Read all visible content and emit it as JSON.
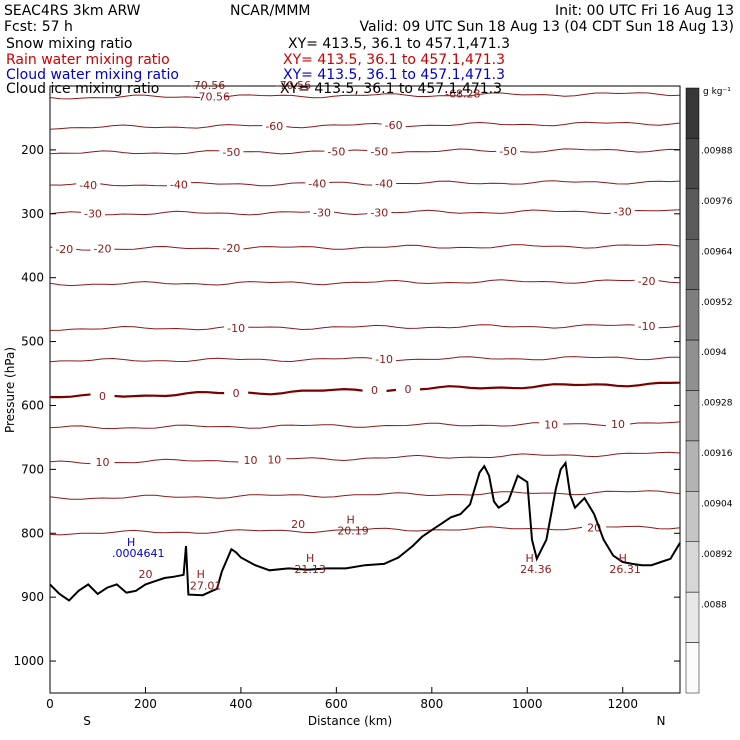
{
  "header": {
    "left1": "SEAC4RS   3km ARW",
    "center1": "NCAR/MMM",
    "right1": "Init: 00 UTC Fri 16 Aug 13",
    "left2": "Fcst:    57 h",
    "center2": "Valid: 09 UTC Sun 18 Aug 13 (04 CDT Sun 18 Aug 13)",
    "fields": [
      {
        "name": "Snow mixing ratio",
        "xy": "XY= 413.5, 36.1 to 457.1,471.3",
        "color": "#000000"
      },
      {
        "name": "Rain water mixing ratio",
        "xy": "XY= 413.5, 36.1 to 457.1,471.3",
        "color": "#cc0000"
      },
      {
        "name": "Cloud water mixing ratio",
        "xy": "XY= 413.5, 36.1 to 457.1,471.3",
        "color": "#0000cc"
      },
      {
        "name": "Cloud ice mixing ratio",
        "xy": "XY= 413.5, 36.1 to 457.1,471.3",
        "color": "#000000"
      }
    ]
  },
  "colors": {
    "contour": "#8b1a1a",
    "zero_contour": "#7a0000",
    "terrain": "#000000",
    "cloud_water": "#0000cc"
  },
  "chart_data": {
    "type": "contour-cross-section",
    "xlabel": "Distance (km)",
    "ylabel": "Pressure (hPa)",
    "xlim": [
      0,
      1320
    ],
    "ylim": [
      1050,
      100
    ],
    "x_ticks": [
      0,
      200,
      400,
      600,
      800,
      1000,
      1200
    ],
    "y_ticks": [
      200,
      300,
      400,
      500,
      600,
      700,
      800,
      900,
      1000
    ],
    "end_labels": {
      "left": "S",
      "right": "N"
    },
    "temperature_contours": [
      {
        "p_left": 118,
        "p_right": 112,
        "label": "-70.56",
        "label_x": 340
      },
      {
        "p_left": 165,
        "p_right": 158,
        "labels": [
          "-60",
          "-60"
        ],
        "label_xs": [
          470,
          720
        ]
      },
      {
        "p_left": 205,
        "p_right": 200,
        "labels": [
          "-50",
          "-50",
          "-50",
          "-50"
        ],
        "label_xs": [
          380,
          600,
          690,
          960
        ]
      },
      {
        "p_left": 255,
        "p_right": 250,
        "labels": [
          "-40",
          "-40",
          "-40",
          "-40"
        ],
        "label_xs": [
          80,
          270,
          560,
          700
        ]
      },
      {
        "p_left": 300,
        "p_right": 296,
        "labels": [
          "-30",
          "-30",
          "-30",
          "-30"
        ],
        "label_xs": [
          90,
          570,
          690,
          1200
        ]
      },
      {
        "p_left": 355,
        "p_right": 350,
        "labels": [
          "-20",
          "-20",
          "-20"
        ],
        "label_xs": [
          30,
          110,
          380
        ]
      },
      {
        "p_left": 410,
        "p_right": 405,
        "label": "-20",
        "label_x": 1250
      },
      {
        "p_left": 480,
        "p_right": 475,
        "labels": [
          "-10",
          "-10"
        ],
        "label_xs": [
          390,
          1250
        ]
      },
      {
        "p_left": 530,
        "p_right": 525,
        "label": "-10",
        "label_x": 700
      },
      {
        "p_left": 587,
        "p_right": 565,
        "labels": [
          "0",
          "0",
          "0",
          "0"
        ],
        "label_xs": [
          110,
          390,
          680,
          750
        ],
        "bold": true
      },
      {
        "p_left": 635,
        "p_right": 628,
        "labels": [
          "10",
          "10"
        ],
        "label_xs": [
          1050,
          1190
        ]
      },
      {
        "p_left": 690,
        "p_right": 675,
        "labels": [
          "10",
          "10",
          "10"
        ],
        "label_xs": [
          110,
          420,
          470
        ]
      },
      {
        "p_left": 745,
        "p_right": 735,
        "label": "",
        "label_x": 0
      },
      {
        "p_left": 800,
        "p_right": 790,
        "label": "20",
        "label_x": 1140
      }
    ],
    "extrema": [
      {
        "text": "H",
        "x": 545,
        "p": 845,
        "color": "#8b1a1a"
      },
      {
        "text": "21.13",
        "x": 545,
        "p": 862,
        "color": "#8b1a1a"
      },
      {
        "text": "H",
        "x": 630,
        "p": 785,
        "color": "#8b1a1a"
      },
      {
        "text": "20.19",
        "x": 635,
        "p": 802,
        "color": "#8b1a1a"
      },
      {
        "text": "20",
        "x": 520,
        "p": 792,
        "color": "#8b1a1a"
      },
      {
        "text": "H",
        "x": 316,
        "p": 870,
        "color": "#8b1a1a"
      },
      {
        "text": "27.01",
        "x": 326,
        "p": 888,
        "color": "#8b1a1a"
      },
      {
        "text": "H",
        "x": 1005,
        "p": 845,
        "color": "#8b1a1a"
      },
      {
        "text": "24.36",
        "x": 1018,
        "p": 862,
        "color": "#8b1a1a"
      },
      {
        "text": "H",
        "x": 1200,
        "p": 845,
        "color": "#8b1a1a"
      },
      {
        "text": "26.31",
        "x": 1205,
        "p": 862,
        "color": "#8b1a1a"
      },
      {
        "text": "20",
        "x": 200,
        "p": 870,
        "color": "#8b1a1a"
      },
      {
        "text": "H",
        "x": 170,
        "p": 820,
        "color": "#0000cc"
      },
      {
        "text": ".0004641",
        "x": 185,
        "p": 837,
        "color": "#0000cc"
      },
      {
        "text": "-68.28",
        "x": 865,
        "p": 118,
        "color": "#8b1a1a"
      },
      {
        "text": "-70.56",
        "x": 330,
        "p": 105,
        "color": "#8b1a1a"
      },
      {
        "text": "-70.56",
        "x": 510,
        "p": 105,
        "color": "#8b1a1a"
      }
    ],
    "terrain": {
      "x": [
        0,
        20,
        40,
        60,
        80,
        100,
        120,
        140,
        160,
        180,
        200,
        220,
        240,
        260,
        280,
        285,
        290,
        320,
        340,
        350,
        360,
        380,
        390,
        400,
        430,
        460,
        500,
        540,
        580,
        620,
        660,
        700,
        730,
        760,
        780,
        800,
        820,
        840,
        860,
        880,
        900,
        910,
        920,
        930,
        940,
        960,
        970,
        980,
        1000,
        1010,
        1020,
        1040,
        1060,
        1070,
        1080,
        1090,
        1100,
        1120,
        1140,
        1160,
        1180,
        1200,
        1220,
        1240,
        1260,
        1280,
        1300,
        1320
      ],
      "p": [
        880,
        895,
        905,
        890,
        880,
        895,
        885,
        880,
        893,
        890,
        880,
        875,
        870,
        868,
        865,
        820,
        896,
        897,
        890,
        887,
        860,
        825,
        830,
        838,
        850,
        858,
        855,
        857,
        855,
        855,
        850,
        848,
        838,
        820,
        805,
        795,
        785,
        775,
        770,
        755,
        705,
        695,
        710,
        750,
        760,
        750,
        730,
        710,
        720,
        810,
        840,
        810,
        730,
        700,
        690,
        740,
        760,
        745,
        770,
        810,
        835,
        845,
        848,
        850,
        850,
        845,
        840,
        815
      ]
    },
    "colorbar": {
      "unit": "g kg⁻¹",
      "labels": [
        ".00988",
        ".00976",
        ".00964",
        ".00952",
        ".0094",
        ".00928",
        ".00916",
        ".00904",
        ".00892",
        ".0088"
      ]
    }
  }
}
